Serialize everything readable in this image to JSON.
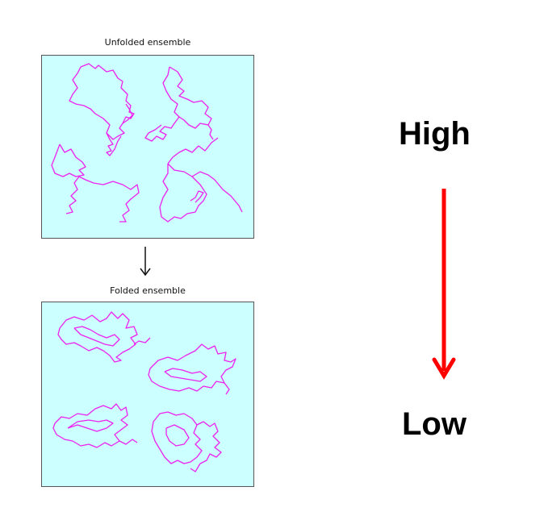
{
  "unfolded_title": "Unfolded ensemble",
  "folded_title": "Folded ensemble",
  "scale_high": "High",
  "scale_low": "Low",
  "colors": {
    "chain": "#ee22ee",
    "panel_bg": "#ccffff",
    "scale_arrow": "#ff0000"
  }
}
